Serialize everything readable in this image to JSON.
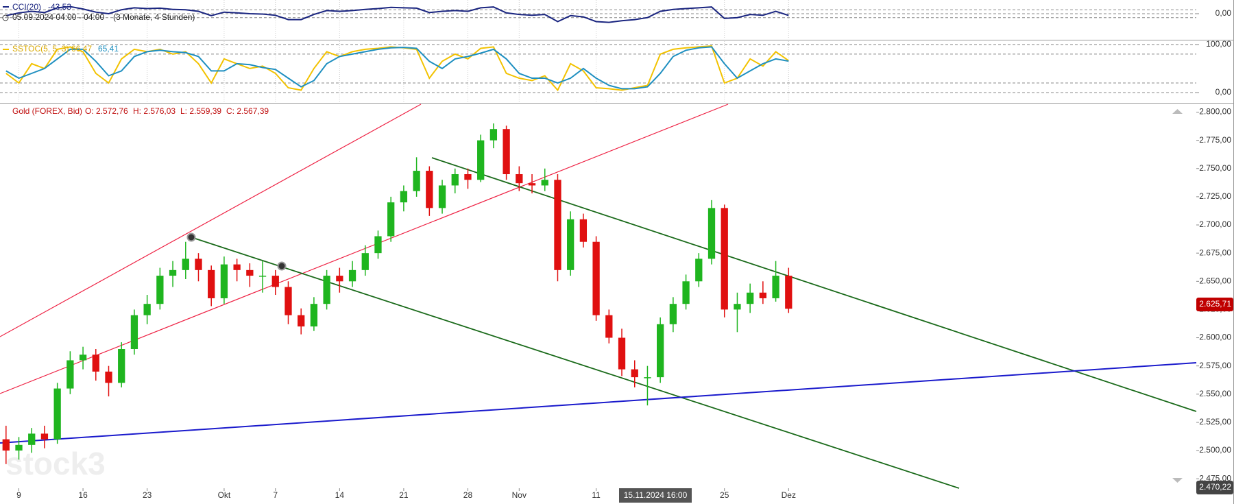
{
  "header": {
    "date": "05.09.2024 04:00 - 04:00",
    "range": "(3 Monate, 4 Stunden)",
    "open": "O: 2.572,76",
    "high": "H: 2.576,03",
    "low": "L: 2.559,39",
    "close": "C: 2.567,39",
    "crosshair_date": "15.11.2024 16:00",
    "last_price": "2.625,71",
    "bottom_price": "2.470,22",
    "watermark": "stock3"
  },
  "chart_data": [
    {
      "type": "candlestick",
      "x": [
        -1,
        0,
        1,
        2,
        3,
        4,
        5,
        6,
        7,
        8,
        9,
        10,
        11,
        12,
        13,
        14,
        15,
        16,
        17,
        18,
        19,
        20,
        21,
        22,
        23,
        24,
        25,
        26,
        27,
        28,
        29,
        30,
        31,
        32,
        33,
        34,
        35,
        36,
        37,
        38,
        39,
        40,
        41,
        42,
        43,
        44,
        45,
        46,
        47,
        48,
        49,
        50,
        51,
        52,
        53,
        54,
        55,
        56,
        57,
        58,
        59,
        60
      ],
      "series": [
        {
          "name": "Gold (FOREX, Bid)",
          "up_color": "#1fb51f",
          "down_color": "#e01010",
          "values": [
            [
              2510,
              2522,
              2488,
              2500
            ],
            [
              2500,
              2512,
              2492,
              2505
            ],
            [
              2505,
              2520,
              2498,
              2515
            ],
            [
              2515,
              2522,
              2502,
              2510
            ],
            [
              2510,
              2560,
              2506,
              2555
            ],
            [
              2555,
              2588,
              2550,
              2580
            ],
            [
              2580,
              2592,
              2572,
              2585
            ],
            [
              2585,
              2590,
              2562,
              2570
            ],
            [
              2570,
              2575,
              2548,
              2560
            ],
            [
              2560,
              2596,
              2556,
              2590
            ],
            [
              2590,
              2625,
              2585,
              2620
            ],
            [
              2620,
              2638,
              2612,
              2630
            ],
            [
              2630,
              2662,
              2625,
              2655
            ],
            [
              2655,
              2668,
              2645,
              2660
            ],
            [
              2660,
              2685,
              2652,
              2670
            ],
            [
              2670,
              2675,
              2650,
              2660
            ],
            [
              2660,
              2664,
              2628,
              2635
            ],
            [
              2635,
              2672,
              2630,
              2665
            ],
            [
              2665,
              2670,
              2650,
              2660
            ],
            [
              2660,
              2666,
              2645,
              2655
            ],
            [
              2655,
              2668,
              2640,
              2655
            ],
            [
              2655,
              2660,
              2638,
              2645
            ],
            [
              2645,
              2650,
              2612,
              2620
            ],
            [
              2620,
              2626,
              2603,
              2610
            ],
            [
              2610,
              2636,
              2606,
              2630
            ],
            [
              2630,
              2660,
              2625,
              2655
            ],
            [
              2655,
              2662,
              2640,
              2650
            ],
            [
              2650,
              2668,
              2645,
              2660
            ],
            [
              2660,
              2682,
              2655,
              2675
            ],
            [
              2675,
              2695,
              2670,
              2690
            ],
            [
              2690,
              2725,
              2685,
              2720
            ],
            [
              2720,
              2735,
              2712,
              2730
            ],
            [
              2730,
              2760,
              2725,
              2748
            ],
            [
              2748,
              2752,
              2708,
              2715
            ],
            [
              2715,
              2740,
              2710,
              2735
            ],
            [
              2735,
              2750,
              2728,
              2745
            ],
            [
              2745,
              2750,
              2732,
              2740
            ],
            [
              2740,
              2780,
              2738,
              2775
            ],
            [
              2775,
              2790,
              2768,
              2785
            ],
            [
              2785,
              2788,
              2740,
              2745
            ],
            [
              2745,
              2752,
              2730,
              2737
            ],
            [
              2737,
              2745,
              2728,
              2735
            ],
            [
              2735,
              2750,
              2730,
              2740
            ],
            [
              2740,
              2745,
              2650,
              2660
            ],
            [
              2660,
              2712,
              2655,
              2705
            ],
            [
              2705,
              2710,
              2680,
              2685
            ],
            [
              2685,
              2690,
              2615,
              2620
            ],
            [
              2620,
              2625,
              2595,
              2600
            ],
            [
              2600,
              2608,
              2566,
              2572
            ],
            [
              2572,
              2580,
              2556,
              2565
            ],
            [
              2565,
              2575,
              2540,
              2565
            ],
            [
              2565,
              2618,
              2560,
              2612
            ],
            [
              2612,
              2636,
              2605,
              2630
            ],
            [
              2630,
              2656,
              2625,
              2650
            ],
            [
              2650,
              2675,
              2645,
              2670
            ],
            [
              2670,
              2722,
              2665,
              2715
            ],
            [
              2715,
              2718,
              2618,
              2625
            ],
            [
              2625,
              2640,
              2605,
              2630
            ],
            [
              2630,
              2648,
              2622,
              2640
            ],
            [
              2640,
              2650,
              2630,
              2635
            ],
            [
              2635,
              2668,
              2632,
              2655
            ],
            [
              2655,
              2662,
              2622,
              2625.71
            ]
          ]
        }
      ],
      "xlim": [
        -1.47,
        91.78
      ],
      "xticks": [
        {
          "value": 0,
          "label": "9"
        },
        {
          "value": 5,
          "label": "16"
        },
        {
          "value": 10,
          "label": "23"
        },
        {
          "value": 16,
          "label": "Okt"
        },
        {
          "value": 20,
          "label": "7"
        },
        {
          "value": 25,
          "label": "14"
        },
        {
          "value": 30,
          "label": "21"
        },
        {
          "value": 35,
          "label": "28"
        },
        {
          "value": 39,
          "label": "Nov"
        },
        {
          "value": 45,
          "label": "11"
        },
        {
          "value": 55,
          "label": "25"
        },
        {
          "value": 60,
          "label": "Dez"
        }
      ],
      "ylim": [
        2466.6,
        2807
      ],
      "yticks": [
        {
          "value": 2475,
          "label": "2.475,00"
        },
        {
          "value": 2500,
          "label": "2.500,00"
        },
        {
          "value": 2525,
          "label": "2.525,00"
        },
        {
          "value": 2550,
          "label": "2.550,00"
        },
        {
          "value": 2575,
          "label": "2.575,00"
        },
        {
          "value": 2600,
          "label": "2.600,00"
        },
        {
          "value": 2625,
          "label": "2.625,00"
        },
        {
          "value": 2650,
          "label": "2.650,00"
        },
        {
          "value": 2675,
          "label": "2.675,00"
        },
        {
          "value": 2700,
          "label": "2.700,00"
        },
        {
          "value": 2725,
          "label": "2.725,00"
        },
        {
          "value": 2750,
          "label": "2.750,00"
        },
        {
          "value": 2775,
          "label": "2.775,00"
        },
        {
          "value": 2800,
          "label": "2.800,00"
        }
      ]
    },
    {
      "type": "line",
      "series": [
        {
          "name": "CCI(20)",
          "color": "#1a2580",
          "value_label": "-43,53",
          "values": [
            -50,
            20,
            60,
            30,
            150,
            180,
            120,
            40,
            0,
            100,
            150,
            130,
            140,
            110,
            100,
            60,
            -50,
            40,
            20,
            0,
            -10,
            -40,
            -150,
            -150,
            -20,
            80,
            60,
            80,
            110,
            130,
            160,
            150,
            140,
            30,
            60,
            80,
            60,
            150,
            170,
            20,
            -20,
            -40,
            -20,
            -200,
            -50,
            -80,
            -200,
            -220,
            -180,
            -150,
            -100,
            60,
            110,
            130,
            150,
            170,
            -120,
            -100,
            -20,
            -40,
            60,
            -43.53
          ]
        }
      ],
      "ylim": [
        -645,
        348
      ],
      "yticks": [
        {
          "value": 0,
          "label": "0,00"
        }
      ],
      "levels": [
        -100,
        100
      ]
    },
    {
      "type": "line",
      "series": [
        {
          "name": "SSTOC(5, 5, 3)",
          "color": "#f2c200",
          "value_label": "66,47",
          "values": [
            40,
            20,
            60,
            50,
            90,
            95,
            85,
            40,
            20,
            70,
            90,
            85,
            90,
            80,
            85,
            60,
            20,
            70,
            60,
            50,
            55,
            40,
            10,
            5,
            50,
            85,
            75,
            85,
            90,
            92,
            95,
            93,
            90,
            30,
            65,
            80,
            70,
            92,
            95,
            40,
            30,
            25,
            35,
            5,
            60,
            45,
            10,
            8,
            5,
            10,
            15,
            80,
            90,
            93,
            95,
            97,
            20,
            30,
            70,
            55,
            85,
            66.47
          ]
        },
        {
          "color": "#1e8fc0",
          "value_label": "65,41",
          "values": [
            45,
            30,
            40,
            50,
            70,
            90,
            90,
            65,
            35,
            45,
            75,
            85,
            88,
            85,
            83,
            75,
            45,
            45,
            60,
            58,
            52,
            48,
            30,
            12,
            25,
            60,
            75,
            80,
            85,
            90,
            93,
            94,
            92,
            65,
            50,
            70,
            75,
            82,
            90,
            70,
            40,
            30,
            30,
            20,
            30,
            50,
            30,
            15,
            8,
            8,
            12,
            40,
            75,
            88,
            93,
            95,
            60,
            30,
            45,
            60,
            70,
            65.41
          ]
        }
      ],
      "ylim": [
        -20,
        107
      ],
      "yticks": [
        {
          "value": 0,
          "label": "0,00"
        },
        {
          "value": 100,
          "label": "100,00"
        }
      ],
      "levels": [
        20,
        80
      ]
    }
  ]
}
